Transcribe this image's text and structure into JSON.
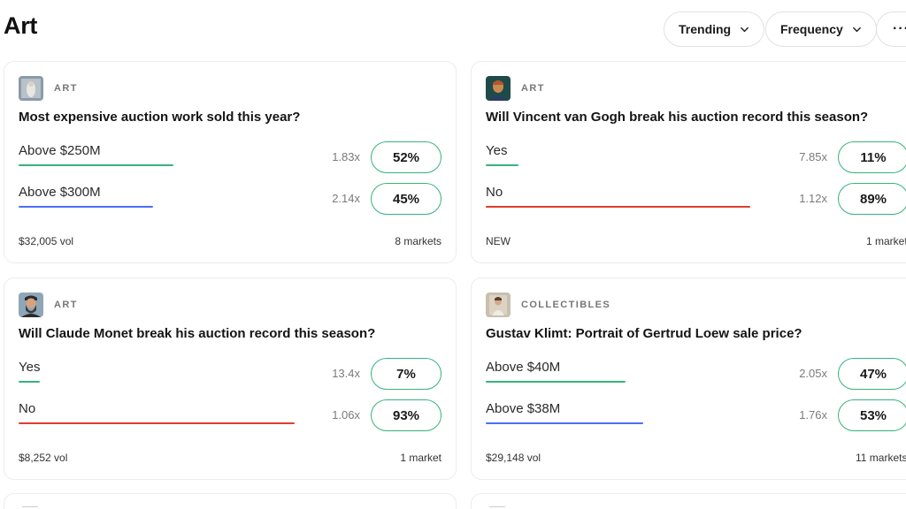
{
  "header": {
    "title": "Art",
    "filters": [
      {
        "label": "Trending"
      },
      {
        "label": "Frequency"
      }
    ],
    "more_label": "···"
  },
  "colors": {
    "green": "#36b37e",
    "blue": "#4c6ef5",
    "red": "#e03e2d",
    "pill_border": "#36b37e"
  },
  "cards": [
    {
      "category": "ART",
      "thumb_icon": "painting-thumbnail",
      "title": "Most expensive auction work sold this year?",
      "outcomes": [
        {
          "label": "Above $250M",
          "multiplier": "1.83x",
          "percent": "52%",
          "bar_color": "green",
          "bar_fill": 0.52
        },
        {
          "label": "Above $300M",
          "multiplier": "2.14x",
          "percent": "45%",
          "bar_color": "blue",
          "bar_fill": 0.45
        }
      ],
      "volume": "$32,005 vol",
      "markets": "8 markets"
    },
    {
      "category": "ART",
      "thumb_icon": "van-gogh-portrait-thumbnail",
      "title": "Will Vincent van Gogh break his auction record this season?",
      "outcomes": [
        {
          "label": "Yes",
          "multiplier": "7.85x",
          "percent": "11%",
          "bar_color": "green",
          "bar_fill": 0.11
        },
        {
          "label": "No",
          "multiplier": "1.12x",
          "percent": "89%",
          "bar_color": "red",
          "bar_fill": 0.89
        }
      ],
      "volume": "NEW",
      "markets": "1 market"
    },
    {
      "category": "ART",
      "thumb_icon": "monet-portrait-thumbnail",
      "title": "Will Claude Monet break his auction record this season?",
      "outcomes": [
        {
          "label": "Yes",
          "multiplier": "13.4x",
          "percent": "7%",
          "bar_color": "green",
          "bar_fill": 0.07
        },
        {
          "label": "No",
          "multiplier": "1.06x",
          "percent": "93%",
          "bar_color": "red",
          "bar_fill": 0.93
        }
      ],
      "volume": "$8,252 vol",
      "markets": "1 market"
    },
    {
      "category": "COLLECTIBLES",
      "thumb_icon": "klimt-portrait-thumbnail",
      "title": "Gustav Klimt: Portrait of Gertrud Loew sale price?",
      "outcomes": [
        {
          "label": "Above $40M",
          "multiplier": "2.05x",
          "percent": "47%",
          "bar_color": "green",
          "bar_fill": 0.47
        },
        {
          "label": "Above $38M",
          "multiplier": "1.76x",
          "percent": "53%",
          "bar_color": "blue",
          "bar_fill": 0.53
        }
      ],
      "volume": "$29,148 vol",
      "markets": "11 markets"
    }
  ]
}
